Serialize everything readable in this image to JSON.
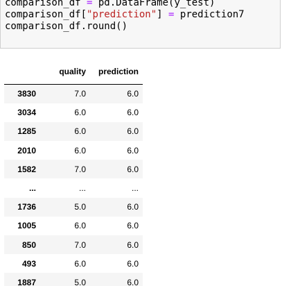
{
  "code_cell": {
    "line1": {
      "lhs": "comparison_df ",
      "op": "=",
      "rhs": " pd.DataFrame(y_test)"
    },
    "line2": {
      "prefix": "comparison_df[",
      "str": "\"prediction\"",
      "mid": "] ",
      "op": "=",
      "suffix": " prediction7"
    },
    "line3": {
      "text": "comparison_df.round()"
    }
  },
  "dataframe": {
    "columns": [
      "quality",
      "prediction"
    ],
    "rows": [
      {
        "index": "3830",
        "quality": "7.0",
        "prediction": "6.0"
      },
      {
        "index": "3034",
        "quality": "6.0",
        "prediction": "6.0"
      },
      {
        "index": "1285",
        "quality": "6.0",
        "prediction": "6.0"
      },
      {
        "index": "2010",
        "quality": "6.0",
        "prediction": "6.0"
      },
      {
        "index": "1582",
        "quality": "7.0",
        "prediction": "6.0"
      },
      {
        "index": "...",
        "quality": "...",
        "prediction": "..."
      },
      {
        "index": "1736",
        "quality": "5.0",
        "prediction": "6.0"
      },
      {
        "index": "1005",
        "quality": "6.0",
        "prediction": "6.0"
      },
      {
        "index": "850",
        "quality": "7.0",
        "prediction": "6.0"
      },
      {
        "index": "493",
        "quality": "6.0",
        "prediction": "6.0"
      },
      {
        "index": "1887",
        "quality": "5.0",
        "prediction": "6.0"
      }
    ]
  },
  "colors": {
    "code_bg": "#f7f7f7",
    "operator": "#aa22ff",
    "string": "#ba2121",
    "stripe": "#f5f5f5"
  }
}
